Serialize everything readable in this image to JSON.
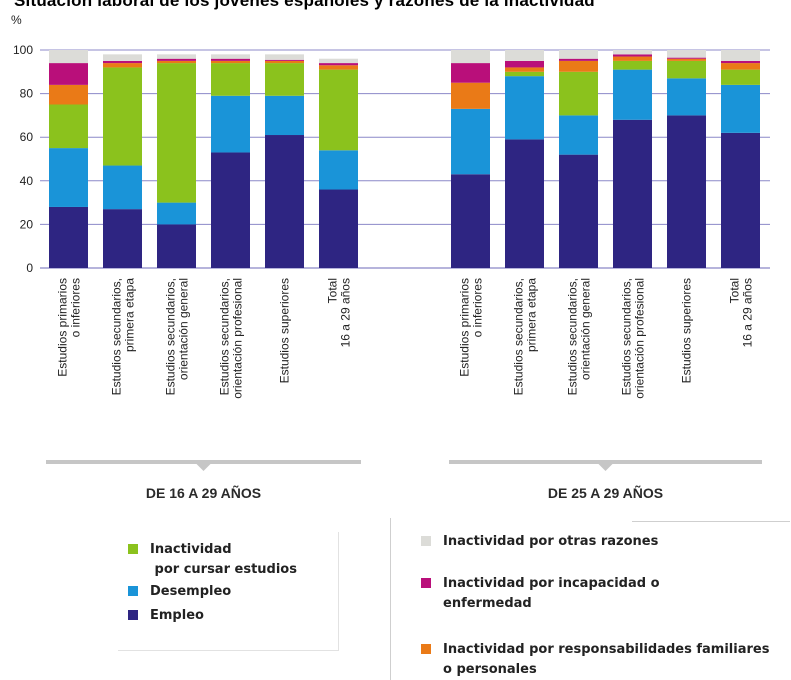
{
  "page": {
    "title": "Situación laboral de los jóvenes españoles y razones de la inactividad"
  },
  "colors": {
    "empleo": "#2e2582",
    "desempleo": "#1a94d8",
    "estudios": "#8bc21d",
    "familiares": "#ea7a17",
    "incapacidad": "#b90f7a",
    "otras": "#dcdcd8",
    "gridline": "#8c88c8",
    "bracket": "#c6c6c6"
  },
  "chart_data": {
    "type": "bar",
    "stacked": true,
    "title": "Situación laboral de los jóvenes españoles y razones de la inactividad",
    "ylabel": "%",
    "ylim": [
      0,
      100
    ],
    "yticks": [
      0,
      20,
      40,
      60,
      80,
      100
    ],
    "groups": [
      {
        "label": "DE 16 A 29 AÑOS",
        "categories": [
          [
            "Estudios primarios",
            "o inferiores"
          ],
          [
            "Estudios secundarios,",
            "primera etapa"
          ],
          [
            "Estudios secundarios,",
            "orientación general"
          ],
          [
            "Estudios secundarios,",
            "orientación profesional"
          ],
          [
            "Estudios superiores"
          ],
          [
            "Total",
            "16 a 29 años"
          ]
        ],
        "series": [
          {
            "name": "Empleo",
            "key": "empleo",
            "values": [
              28,
              27,
              20,
              53,
              61,
              36
            ]
          },
          {
            "name": "Desempleo",
            "key": "desempleo",
            "values": [
              27,
              20,
              10,
              26,
              18,
              18
            ]
          },
          {
            "name": "Inactividad por cursar estudios",
            "key": "estudios",
            "values": [
              20,
              45,
              64,
              15,
              15,
              37
            ]
          },
          {
            "name": "Inactividad por responsabilidades familiares o personales",
            "key": "familiares",
            "values": [
              9,
              2,
              1,
              1,
              1,
              2
            ]
          },
          {
            "name": "Inactividad por incapacidad o enfermedad",
            "key": "incapacidad",
            "values": [
              10,
              1,
              1,
              1,
              0.5,
              1
            ]
          },
          {
            "name": "Inactividad por otras razones",
            "key": "otras",
            "values": [
              6,
              3,
              2,
              2,
              2.5,
              2
            ]
          }
        ]
      },
      {
        "label": "DE 25 A 29 AÑOS",
        "categories": [
          [
            "Estudios primarios",
            "o inferiores"
          ],
          [
            "Estudios secundarios,",
            "primera etapa"
          ],
          [
            "Estudios secundarios,",
            "orientación general"
          ],
          [
            "Estudios secundarios,",
            "orientación profesional"
          ],
          [
            "Estudios superiores"
          ],
          [
            "Total",
            "16 a 29 años"
          ]
        ],
        "series": [
          {
            "name": "Empleo",
            "key": "empleo",
            "values": [
              43,
              59,
              52,
              68,
              70,
              62
            ]
          },
          {
            "name": "Desempleo",
            "key": "desempleo",
            "values": [
              30,
              29,
              18,
              23,
              17,
              22
            ]
          },
          {
            "name": "Inactividad por cursar estudios",
            "key": "estudios",
            "values": [
              0,
              2,
              20,
              4,
              8,
              7
            ]
          },
          {
            "name": "Inactividad por responsabilidades familiares o personales",
            "key": "familiares",
            "values": [
              12,
              2,
              5,
              2,
              1,
              3
            ]
          },
          {
            "name": "Inactividad por incapacidad o enfermedad",
            "key": "incapacidad",
            "values": [
              9,
              3,
              1,
              1,
              0.5,
              1
            ]
          },
          {
            "name": "Inactividad por otras razones",
            "key": "otras",
            "values": [
              6,
              5,
              4,
              2,
              3.5,
              5
            ]
          }
        ]
      }
    ]
  },
  "legend": {
    "left": [
      {
        "key": "estudios",
        "lines": [
          "Inactividad",
          " por cursar estudios"
        ]
      },
      {
        "key": "desempleo",
        "lines": [
          "Desempleo"
        ]
      },
      {
        "key": "empleo",
        "lines": [
          "Empleo"
        ]
      }
    ],
    "right": [
      {
        "key": "otras",
        "lines": [
          "Inactividad por otras razones"
        ]
      },
      {
        "key": "incapacidad",
        "lines": [
          "Inactividad por incapacidad o",
          "enfermedad"
        ]
      },
      {
        "key": "familiares",
        "lines": [
          "Inactividad por responsabilidades familiares",
          "o personales"
        ]
      }
    ]
  }
}
